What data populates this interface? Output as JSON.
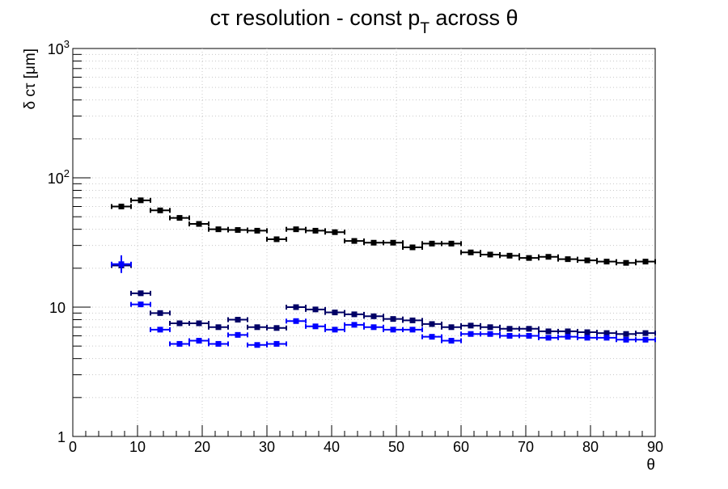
{
  "chart_data": {
    "type": "scatter",
    "title": "cτ resolution - const p",
    "title_sub": "T",
    "title_tail": " across θ",
    "xlabel": "θ",
    "ylabel": "δ cτ [μm]",
    "xlim": [
      0,
      90
    ],
    "ylim": [
      1,
      1000
    ],
    "y_scale": "log",
    "grid": true,
    "x_ticks": [
      "0",
      "10",
      "20",
      "30",
      "40",
      "50",
      "60",
      "70",
      "80",
      "90"
    ],
    "y_ticks": [
      {
        "value": 1,
        "label": "1"
      },
      {
        "value": 10,
        "label": "10"
      },
      {
        "value": 100,
        "label": "10",
        "exp": "2"
      },
      {
        "value": 1000,
        "label": "10",
        "exp": "3"
      }
    ],
    "series": [
      {
        "color": "#000000",
        "x": [
          7.5,
          10.5,
          13.5,
          16.5,
          19.5,
          22.5,
          25.5,
          28.5,
          31.5,
          34.5,
          37.5,
          40.5,
          43.5,
          46.5,
          49.5,
          52.5,
          55.5,
          58.5,
          61.5,
          64.5,
          67.5,
          70.5,
          73.5,
          76.5,
          79.5,
          82.5,
          85.5,
          88.5
        ],
        "y": [
          60,
          67,
          56,
          49,
          44,
          40,
          39.5,
          39,
          33.5,
          40,
          39,
          38,
          32.5,
          31.5,
          31.5,
          29,
          31,
          31,
          26.5,
          25.5,
          25,
          24,
          24.5,
          23.5,
          23,
          22.5,
          22,
          22.5
        ],
        "x_err": 1.5
      },
      {
        "color": "#000066",
        "x": [
          7.5,
          10.5,
          13.5,
          16.5,
          19.5,
          22.5,
          25.5,
          28.5,
          31.5,
          34.5,
          37.5,
          40.5,
          43.5,
          46.5,
          49.5,
          52.5,
          55.5,
          58.5,
          61.5,
          64.5,
          67.5,
          70.5,
          73.5,
          76.5,
          79.5,
          82.5,
          85.5,
          88.5
        ],
        "y": [
          21,
          12.8,
          9,
          7.5,
          7.5,
          7,
          8,
          7,
          6.9,
          10,
          9.6,
          9.1,
          8.8,
          8.5,
          8.1,
          7.9,
          7.4,
          7,
          7.2,
          7,
          6.8,
          6.8,
          6.5,
          6.5,
          6.4,
          6.3,
          6.2,
          6.3
        ],
        "x_err": 1.5
      },
      {
        "color": "#0000ff",
        "x": [
          7.5,
          10.5,
          13.5,
          16.5,
          19.5,
          22.5,
          25.5,
          28.5,
          31.5,
          34.5,
          37.5,
          40.5,
          43.5,
          46.5,
          49.5,
          52.5,
          55.5,
          58.5,
          61.5,
          64.5,
          67.5,
          70.5,
          73.5,
          76.5,
          79.5,
          82.5,
          85.5,
          88.5
        ],
        "y": [
          21.5,
          10.5,
          6.7,
          5.2,
          5.5,
          5.2,
          6.1,
          5.1,
          5.2,
          7.8,
          7.1,
          6.7,
          7.3,
          7,
          6.7,
          6.7,
          5.9,
          5.5,
          6.2,
          6.2,
          6,
          6,
          5.8,
          5.9,
          5.8,
          5.8,
          5.6,
          5.6
        ],
        "x_err": 1.5
      }
    ]
  }
}
